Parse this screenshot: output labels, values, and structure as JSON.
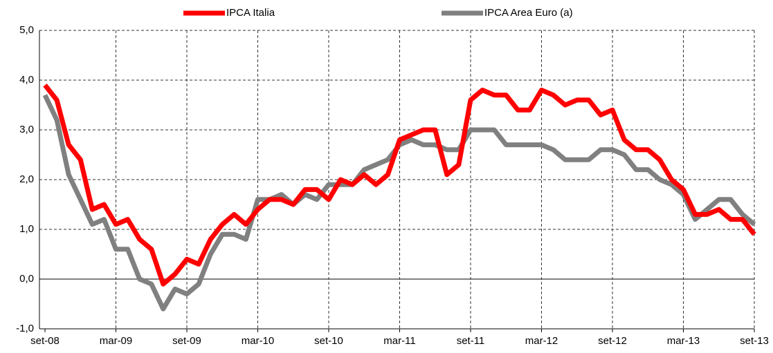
{
  "chart_data": {
    "type": "line",
    "categories": [
      "set-08",
      null,
      null,
      null,
      null,
      null,
      "mar-09",
      null,
      null,
      null,
      null,
      null,
      "set-09",
      null,
      null,
      null,
      null,
      null,
      "mar-10",
      null,
      null,
      null,
      null,
      null,
      "set-10",
      null,
      null,
      null,
      null,
      null,
      "mar-11",
      null,
      null,
      null,
      null,
      null,
      "set-11",
      null,
      null,
      null,
      null,
      null,
      "mar-12",
      null,
      null,
      null,
      null,
      null,
      "set-12",
      null,
      null,
      null,
      null,
      null,
      "mar-13",
      null,
      null,
      null,
      null,
      null,
      "set-13"
    ],
    "series": [
      {
        "name": "IPCA Italia",
        "color": "#ff0000",
        "values": [
          3.9,
          3.6,
          2.7,
          2.4,
          1.4,
          1.5,
          1.1,
          1.2,
          0.8,
          0.6,
          -0.1,
          0.1,
          0.4,
          0.3,
          0.8,
          1.1,
          1.3,
          1.1,
          1.4,
          1.6,
          1.6,
          1.5,
          1.8,
          1.8,
          1.6,
          2.0,
          1.9,
          2.1,
          1.9,
          2.1,
          2.8,
          2.9,
          3.0,
          3.0,
          2.1,
          2.3,
          3.6,
          3.8,
          3.7,
          3.7,
          3.4,
          3.4,
          3.8,
          3.7,
          3.5,
          3.6,
          3.6,
          3.3,
          3.4,
          2.8,
          2.6,
          2.6,
          2.4,
          2.0,
          1.8,
          1.3,
          1.3,
          1.4,
          1.2,
          1.2,
          0.9
        ]
      },
      {
        "name": "IPCA Area Euro (a)",
        "color": "#808080",
        "values": [
          3.7,
          3.2,
          2.1,
          1.6,
          1.1,
          1.2,
          0.6,
          0.6,
          0.0,
          -0.1,
          -0.6,
          -0.2,
          -0.3,
          -0.1,
          0.5,
          0.9,
          0.9,
          0.8,
          1.6,
          1.6,
          1.7,
          1.5,
          1.7,
          1.6,
          1.9,
          1.9,
          1.9,
          2.2,
          2.3,
          2.4,
          2.7,
          2.8,
          2.7,
          2.7,
          2.6,
          2.6,
          3.0,
          3.0,
          3.0,
          2.7,
          2.7,
          2.7,
          2.7,
          2.6,
          2.4,
          2.4,
          2.4,
          2.6,
          2.6,
          2.5,
          2.2,
          2.2,
          2.0,
          1.9,
          1.7,
          1.2,
          1.4,
          1.6,
          1.6,
          1.3,
          1.1
        ]
      }
    ],
    "ylim": [
      -1,
      5
    ],
    "yticks": [
      {
        "value": -1,
        "label": "-1,0"
      },
      {
        "value": 0,
        "label": "0,0"
      },
      {
        "value": 1,
        "label": "1,0"
      },
      {
        "value": 2,
        "label": "2,0"
      },
      {
        "value": 3,
        "label": "3,0"
      },
      {
        "value": 4,
        "label": "4,0"
      },
      {
        "value": 5,
        "label": "5,0"
      }
    ],
    "grid": true,
    "legend": "top"
  }
}
